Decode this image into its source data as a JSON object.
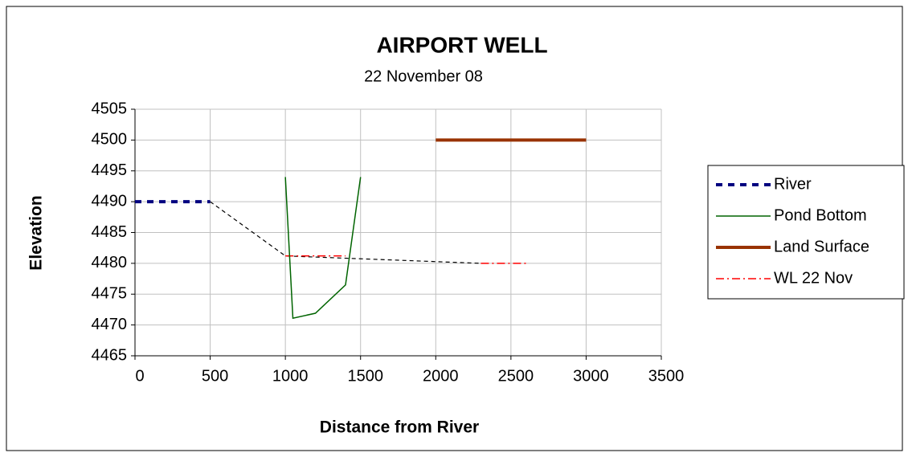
{
  "chart_data": {
    "type": "line",
    "title": "AIRPORT WELL",
    "subtitle": "22 November 08",
    "x_label": "Distance from River",
    "y_label": "Elevation",
    "xlim": [
      0,
      3500
    ],
    "xticks": [
      0,
      500,
      1000,
      1500,
      2000,
      2500,
      3000,
      3500
    ],
    "ylim": [
      4465,
      4505
    ],
    "yticks": [
      4465,
      4470,
      4475,
      4480,
      4485,
      4490,
      4495,
      4500,
      4505
    ],
    "grid": true,
    "legend": "right",
    "series": [
      {
        "name": "River",
        "color": "#000080",
        "style": "dashed",
        "width": 4,
        "x": [
          0,
          500
        ],
        "values": [
          4490,
          4490
        ]
      },
      {
        "name": "Pond Bottom",
        "color": "#006400",
        "style": "solid",
        "width": 1.5,
        "x": [
          1000,
          1050,
          1200,
          1400,
          1500
        ],
        "values": [
          4494,
          4471.1,
          4471.9,
          4476.5,
          4494
        ]
      },
      {
        "name": "Land Surface",
        "color": "#993300",
        "style": "solid",
        "width": 4,
        "x": [
          2000,
          3000
        ],
        "values": [
          4500,
          4500
        ]
      },
      {
        "name": "WL 22 Nov",
        "color": "#ff0000",
        "style": "dashdot",
        "width": 1.5,
        "x": [
          1000,
          1400,
          1400,
          2300,
          2600
        ],
        "values": [
          4481.2,
          4481.2,
          null,
          4480,
          4480
        ]
      },
      {
        "color": "#000000",
        "style": "dashed",
        "width": 1.2,
        "x": [
          500,
          1000,
          2300
        ],
        "values": [
          4490,
          4481.2,
          4480
        ]
      }
    ]
  }
}
